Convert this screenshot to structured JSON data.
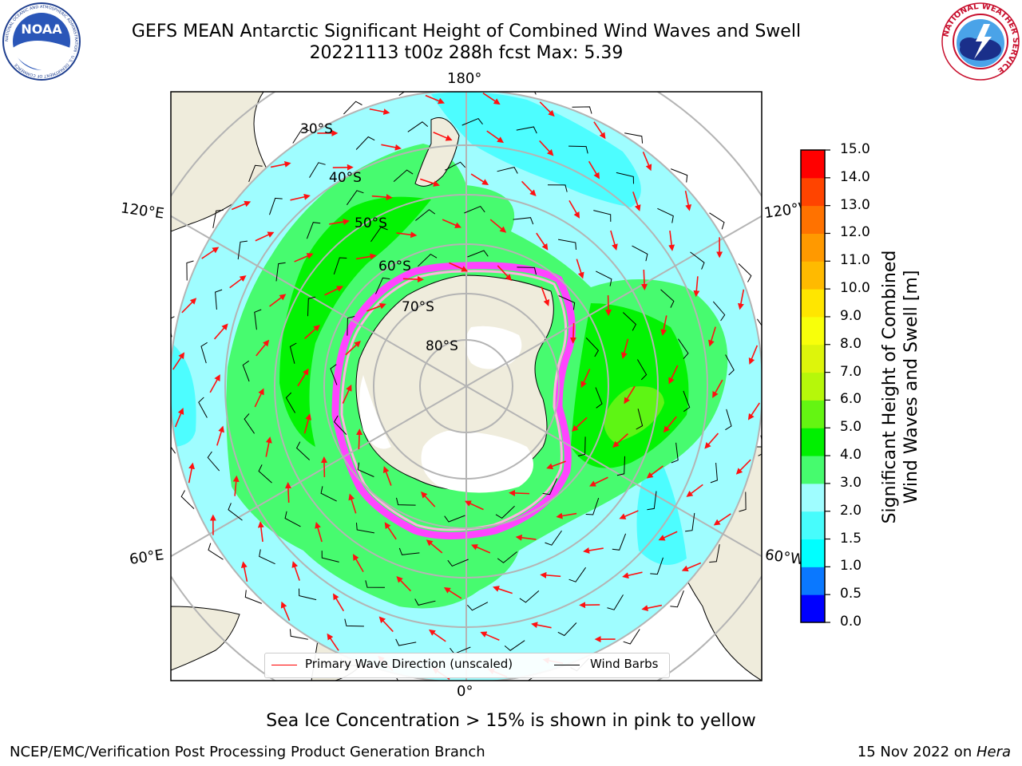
{
  "header": {
    "title_line1": "GEFS MEAN Antarctic Significant Height of Combined Wind Waves and Swell",
    "title_line2": "20221113 t00z 288h fcst   Max: 5.39"
  },
  "logos": {
    "noaa": {
      "text": "NOAA",
      "ring_text": "NATIONAL OCEANIC AND ATMOSPHERIC ADMINISTRATION · U.S. DEPARTMENT OF COMMERCE"
    },
    "nws": {
      "ring_text": "NATIONAL WEATHER SERVICE"
    }
  },
  "map": {
    "projection": "south-polar-stereographic",
    "longitude_labels": {
      "top": "180°",
      "bottom": "0°",
      "upper_left": "120°E",
      "lower_left": "60°E",
      "upper_right": "120°W",
      "lower_right": "60°W"
    },
    "latitude_labels": [
      "30°S",
      "40°S",
      "50°S",
      "60°S",
      "70°S",
      "80°S"
    ],
    "colors": {
      "land": "#efecdc",
      "ice_shelf": "#ffffff",
      "ocean_low": "#9ffdff",
      "ocean_mid": "#4dfdff",
      "band_3": "#47fb6f",
      "band_4": "#03f303",
      "band_5": "#5ef514",
      "sea_ice_edge": "#ff44ff",
      "grid": "#b4b4b4",
      "wave_arrow": "#ff1111"
    }
  },
  "colorbar": {
    "title_line1": "Significant Height of Combined",
    "title_line2": "Wind Waves and Swell [m]",
    "ticks": [
      "0.0",
      "0.5",
      "1.0",
      "1.5",
      "2.0",
      "3.0",
      "4.0",
      "5.0",
      "6.0",
      "7.0",
      "8.0",
      "9.0",
      "10.0",
      "11.0",
      "12.0",
      "13.0",
      "14.0",
      "15.0"
    ],
    "colors": [
      "#0000ff",
      "#0a78ff",
      "#00ffff",
      "#47fcfc",
      "#9ffdff",
      "#46fb6e",
      "#00f000",
      "#64f512",
      "#b6f70a",
      "#ddf50b",
      "#f8ff0a",
      "#ffe600",
      "#ffba00",
      "#ff9900",
      "#ff7200",
      "#ff4400",
      "#ff0000"
    ]
  },
  "legend": {
    "wave_label": "Primary Wave Direction (unscaled)",
    "wind_label": "Wind Barbs",
    "wave_color": "#ff0000",
    "wind_color": "#000000"
  },
  "note": "Sea Ice Concentration > 15% is shown in pink to yellow",
  "footer": {
    "left": "NCEP/EMC/Verification Post Processing Product Generation Branch",
    "right_date": "15 Nov 2022 on ",
    "right_host": "Hera"
  }
}
